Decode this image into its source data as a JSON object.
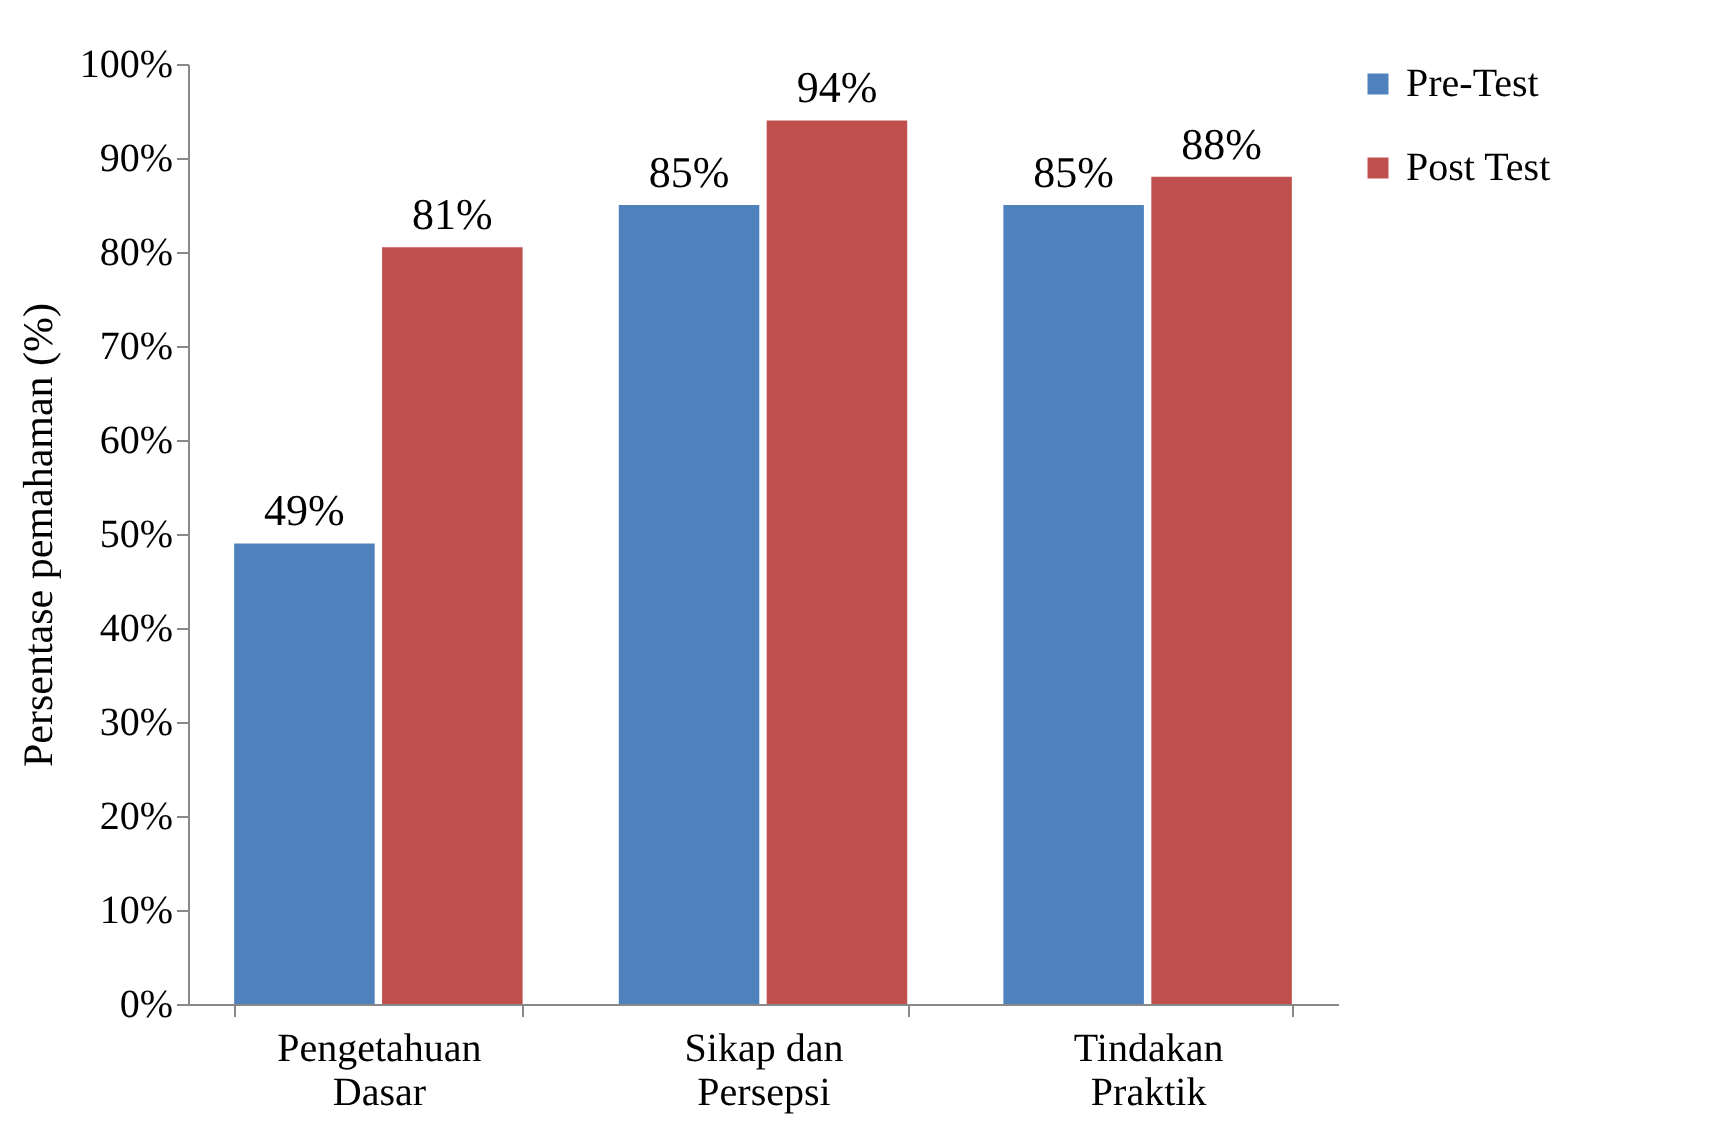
{
  "chart_data": {
    "type": "bar",
    "ylabel": "Persentase pemahaman (%)",
    "categories": [
      "Pengetahuan Dasar",
      "Sikap dan Persepsi",
      "Tindakan Praktik"
    ],
    "series": [
      {
        "name": "Pre-Test",
        "color": "#4f81bd",
        "values": [
          49,
          85,
          85
        ],
        "value_labels": [
          "49%",
          "85%",
          "85%"
        ]
      },
      {
        "name": "Post Test",
        "color": "#c0504d",
        "values": [
          80.5,
          94,
          88
        ],
        "value_labels": [
          "81%",
          "94%",
          "88%"
        ]
      }
    ],
    "ylim": [
      0,
      100
    ],
    "yticks": [
      {
        "value": 0,
        "label": "0%"
      },
      {
        "value": 10,
        "label": "10%"
      },
      {
        "value": 20,
        "label": "20%"
      },
      {
        "value": 30,
        "label": "30%"
      },
      {
        "value": 40,
        "label": "40%"
      },
      {
        "value": 50,
        "label": "50%"
      },
      {
        "value": 60,
        "label": "60%"
      },
      {
        "value": 70,
        "label": "70%"
      },
      {
        "value": 80,
        "label": "80%"
      },
      {
        "value": 90,
        "label": "90%"
      },
      {
        "value": 100,
        "label": "100%"
      }
    ],
    "grid": false,
    "legend": "right"
  }
}
